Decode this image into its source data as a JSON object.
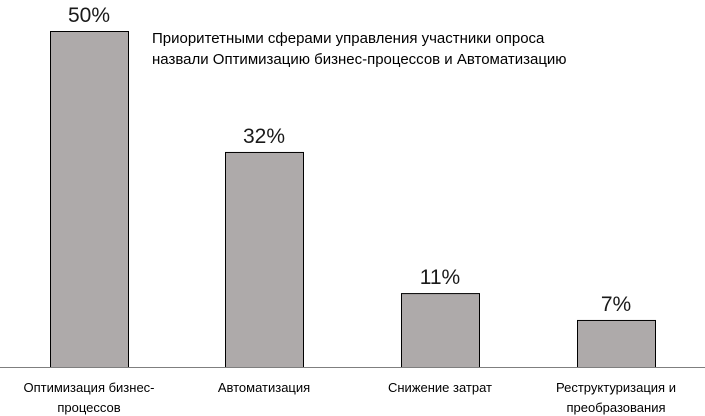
{
  "chart_data": {
    "type": "bar",
    "categories": [
      [
        "Оптимизация бизнес-",
        "процессов"
      ],
      [
        "Автоматизация"
      ],
      [
        "Снижение затрат"
      ],
      [
        "Реструктуризация и",
        "преобразования"
      ]
    ],
    "values": [
      50,
      32,
      11,
      7
    ],
    "value_labels": [
      "50%",
      "32%",
      "11%",
      "7%"
    ],
    "annotation": [
      "Приоритетными сферами управления участники опроса",
      "назвали Оптимизацию бизнес-процессов и Автоматизацию"
    ],
    "ylim": [
      0,
      50
    ],
    "grid": false,
    "bar_color": "#aeaaaa",
    "bar_outline_color": "#000000"
  }
}
